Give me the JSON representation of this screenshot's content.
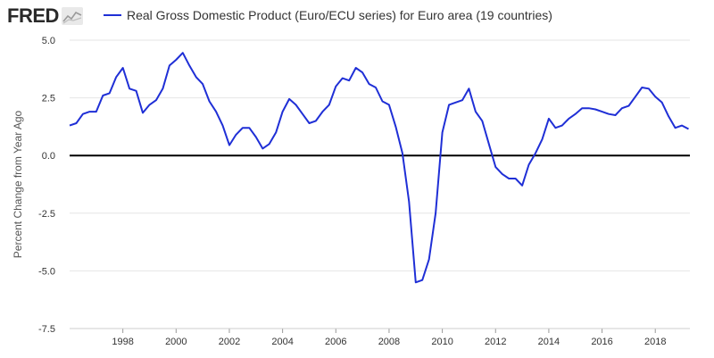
{
  "logo": {
    "text": "FRED"
  },
  "legend": {
    "label": "Real Gross Domestic Product (Euro/ECU series) for Euro area (19 countries)"
  },
  "colors": {
    "series": "#1f2fd6",
    "zero_line": "#000000",
    "grid": "#e6e6e6",
    "text": "#333333"
  },
  "chart_data": {
    "type": "line",
    "title": "",
    "xlabel": "",
    "ylabel": "Percent Change from Year Ago",
    "ylim": [
      -7.5,
      5.0
    ],
    "xlim": [
      1996.0,
      2019.3
    ],
    "grid": "horizontal",
    "legend_position": "top",
    "y_ticks": [
      "5.0",
      "2.5",
      "0.0",
      "-2.5",
      "-5.0",
      "-7.5"
    ],
    "y_tick_values": [
      5.0,
      2.5,
      0.0,
      -2.5,
      -5.0,
      -7.5
    ],
    "x_ticks": [
      "1998",
      "2000",
      "2002",
      "2004",
      "2006",
      "2008",
      "2010",
      "2012",
      "2014",
      "2016",
      "2018"
    ],
    "x_tick_values": [
      1998,
      2000,
      2002,
      2004,
      2006,
      2008,
      2010,
      2012,
      2014,
      2016,
      2018
    ],
    "series": [
      {
        "name": "Real Gross Domestic Product (Euro/ECU series) for Euro area (19 countries)",
        "x": [
          "1996-01-01",
          "1996-04-01",
          "1996-07-01",
          "1996-10-01",
          "1997-01-01",
          "1997-04-01",
          "1997-07-01",
          "1997-10-01",
          "1998-01-01",
          "1998-04-01",
          "1998-07-01",
          "1998-10-01",
          "1999-01-01",
          "1999-04-01",
          "1999-07-01",
          "1999-10-01",
          "2000-01-01",
          "2000-04-01",
          "2000-07-01",
          "2000-10-01",
          "2001-01-01",
          "2001-04-01",
          "2001-07-01",
          "2001-10-01",
          "2002-01-01",
          "2002-04-01",
          "2002-07-01",
          "2002-10-01",
          "2003-01-01",
          "2003-04-01",
          "2003-07-01",
          "2003-10-01",
          "2004-01-01",
          "2004-04-01",
          "2004-07-01",
          "2004-10-01",
          "2005-01-01",
          "2005-04-01",
          "2005-07-01",
          "2005-10-01",
          "2006-01-01",
          "2006-04-01",
          "2006-07-01",
          "2006-10-01",
          "2007-01-01",
          "2007-04-01",
          "2007-07-01",
          "2007-10-01",
          "2008-01-01",
          "2008-04-01",
          "2008-07-01",
          "2008-10-01",
          "2009-01-01",
          "2009-04-01",
          "2009-07-01",
          "2009-10-01",
          "2010-01-01",
          "2010-04-01",
          "2010-07-01",
          "2010-10-01",
          "2011-01-01",
          "2011-04-01",
          "2011-07-01",
          "2011-10-01",
          "2012-01-01",
          "2012-04-01",
          "2012-07-01",
          "2012-10-01",
          "2013-01-01",
          "2013-04-01",
          "2013-07-01",
          "2013-10-01",
          "2014-01-01",
          "2014-04-01",
          "2014-07-01",
          "2014-10-01",
          "2015-01-01",
          "2015-04-01",
          "2015-07-01",
          "2015-10-01",
          "2016-01-01",
          "2016-04-01",
          "2016-07-01",
          "2016-10-01",
          "2017-01-01",
          "2017-04-01",
          "2017-07-01",
          "2017-10-01",
          "2018-01-01",
          "2018-04-01",
          "2018-07-01",
          "2018-10-01",
          "2019-01-01",
          "2019-04-01"
        ],
        "y": [
          1.3,
          1.4,
          1.8,
          1.9,
          1.9,
          2.6,
          2.7,
          3.4,
          3.8,
          2.9,
          2.8,
          1.85,
          2.2,
          2.4,
          2.9,
          3.9,
          4.15,
          4.45,
          3.9,
          3.4,
          3.1,
          2.35,
          1.9,
          1.3,
          0.45,
          0.9,
          1.2,
          1.2,
          0.8,
          0.3,
          0.5,
          1.0,
          1.9,
          2.45,
          2.2,
          1.8,
          1.4,
          1.5,
          1.9,
          2.2,
          3.0,
          3.35,
          3.25,
          3.8,
          3.6,
          3.1,
          2.95,
          2.35,
          2.2,
          1.25,
          0.1,
          -2.0,
          -5.5,
          -5.4,
          -4.5,
          -2.5,
          1.0,
          2.2,
          2.3,
          2.4,
          2.9,
          1.9,
          1.5,
          0.5,
          -0.5,
          -0.8,
          -1.0,
          -1.0,
          -1.3,
          -0.4,
          0.1,
          0.7,
          1.6,
          1.2,
          1.3,
          1.6,
          1.8,
          2.05,
          2.05,
          2.0,
          1.9,
          1.8,
          1.75,
          2.05,
          2.15,
          2.55,
          2.95,
          2.9,
          2.55,
          2.3,
          1.7,
          1.2,
          1.3,
          1.15
        ]
      }
    ]
  }
}
